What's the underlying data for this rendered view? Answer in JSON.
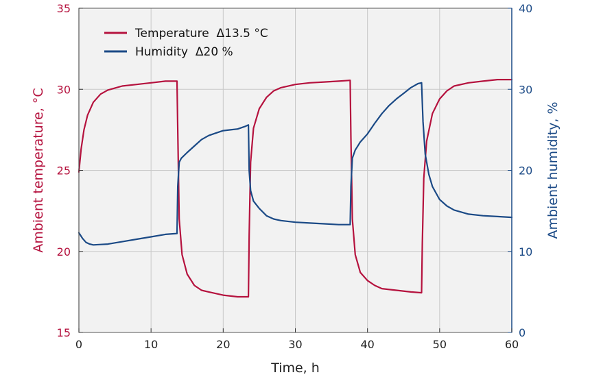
{
  "chart_data": {
    "type": "line",
    "xlabel": "Time, h",
    "ylabel_left": "Ambient temperature, °C",
    "ylabel_right": "Ambient humidity, %",
    "xlim": [
      0,
      60
    ],
    "ylim_left": [
      15,
      35
    ],
    "ylim_right": [
      0,
      40
    ],
    "x_ticks": [
      "0",
      "10",
      "20",
      "30",
      "40",
      "50",
      "60"
    ],
    "y_left_ticks": [
      "15",
      "20",
      "25",
      "30",
      "35"
    ],
    "y_right_ticks": [
      "0",
      "10",
      "20",
      "30",
      "40"
    ],
    "grid": true,
    "legend_position": "top-left",
    "series": [
      {
        "name": "Temperature  Δ13.5 °C",
        "axis": "left",
        "color": "#b5123e",
        "x": [
          0,
          0.3,
          0.7,
          1.2,
          2,
          3,
          4,
          6,
          8,
          10,
          12,
          13.6,
          13.7,
          13.9,
          14.3,
          15,
          16,
          17,
          18,
          20,
          22,
          23.5,
          23.6,
          23.8,
          24.2,
          25,
          26,
          27,
          28,
          30,
          32,
          34,
          36,
          37.6,
          37.7,
          37.9,
          38.3,
          39,
          40,
          41,
          42,
          44,
          46,
          47.5,
          47.6,
          47.8,
          48.2,
          49,
          50,
          51,
          52,
          54,
          56,
          58,
          60
        ],
        "values": [
          24.9,
          26.3,
          27.5,
          28.4,
          29.2,
          29.7,
          29.95,
          30.2,
          30.3,
          30.4,
          30.5,
          30.5,
          27.5,
          22.0,
          19.8,
          18.6,
          17.9,
          17.6,
          17.5,
          17.3,
          17.2,
          17.2,
          21.0,
          25.5,
          27.6,
          28.8,
          29.5,
          29.9,
          30.1,
          30.3,
          30.4,
          30.45,
          30.5,
          30.55,
          27.0,
          22.0,
          19.8,
          18.7,
          18.2,
          17.9,
          17.7,
          17.6,
          17.5,
          17.45,
          20.5,
          24.5,
          26.8,
          28.5,
          29.4,
          29.9,
          30.2,
          30.4,
          30.5,
          30.6,
          30.6
        ]
      },
      {
        "name": "Humidity  Δ20 %",
        "axis": "right",
        "color": "#1b4a86",
        "x": [
          0,
          0.5,
          1,
          1.5,
          2,
          3,
          4,
          6,
          8,
          10,
          12,
          13.6,
          13.7,
          13.9,
          14.2,
          15,
          16,
          17,
          18,
          19,
          20,
          21,
          22,
          23,
          23.5,
          23.6,
          23.8,
          24.2,
          25,
          26,
          27,
          28,
          30,
          32,
          34,
          36,
          37.6,
          37.7,
          37.9,
          38.3,
          39,
          40,
          41,
          42,
          43,
          44,
          45,
          46,
          47,
          47.5,
          47.7,
          48,
          48.5,
          49,
          50,
          51,
          52,
          54,
          56,
          58,
          60
        ],
        "values": [
          12.3,
          11.6,
          11.1,
          10.9,
          10.8,
          10.85,
          10.9,
          11.2,
          11.5,
          11.8,
          12.1,
          12.2,
          18.0,
          21.0,
          21.5,
          22.2,
          23.0,
          23.8,
          24.3,
          24.6,
          24.9,
          25.0,
          25.1,
          25.4,
          25.6,
          20.0,
          17.5,
          16.2,
          15.3,
          14.4,
          14.0,
          13.8,
          13.6,
          13.5,
          13.4,
          13.3,
          13.3,
          18.0,
          21.5,
          22.5,
          23.5,
          24.5,
          25.8,
          27.0,
          28.0,
          28.8,
          29.5,
          30.2,
          30.7,
          30.8,
          26.0,
          22.0,
          19.5,
          18.0,
          16.4,
          15.6,
          15.1,
          14.6,
          14.4,
          14.3,
          14.2
        ]
      }
    ]
  },
  "colors": {
    "temperature": "#b5123e",
    "humidity": "#1b4a86",
    "plot_background": "#f2f2f2",
    "grid": "#c8c8c8"
  }
}
